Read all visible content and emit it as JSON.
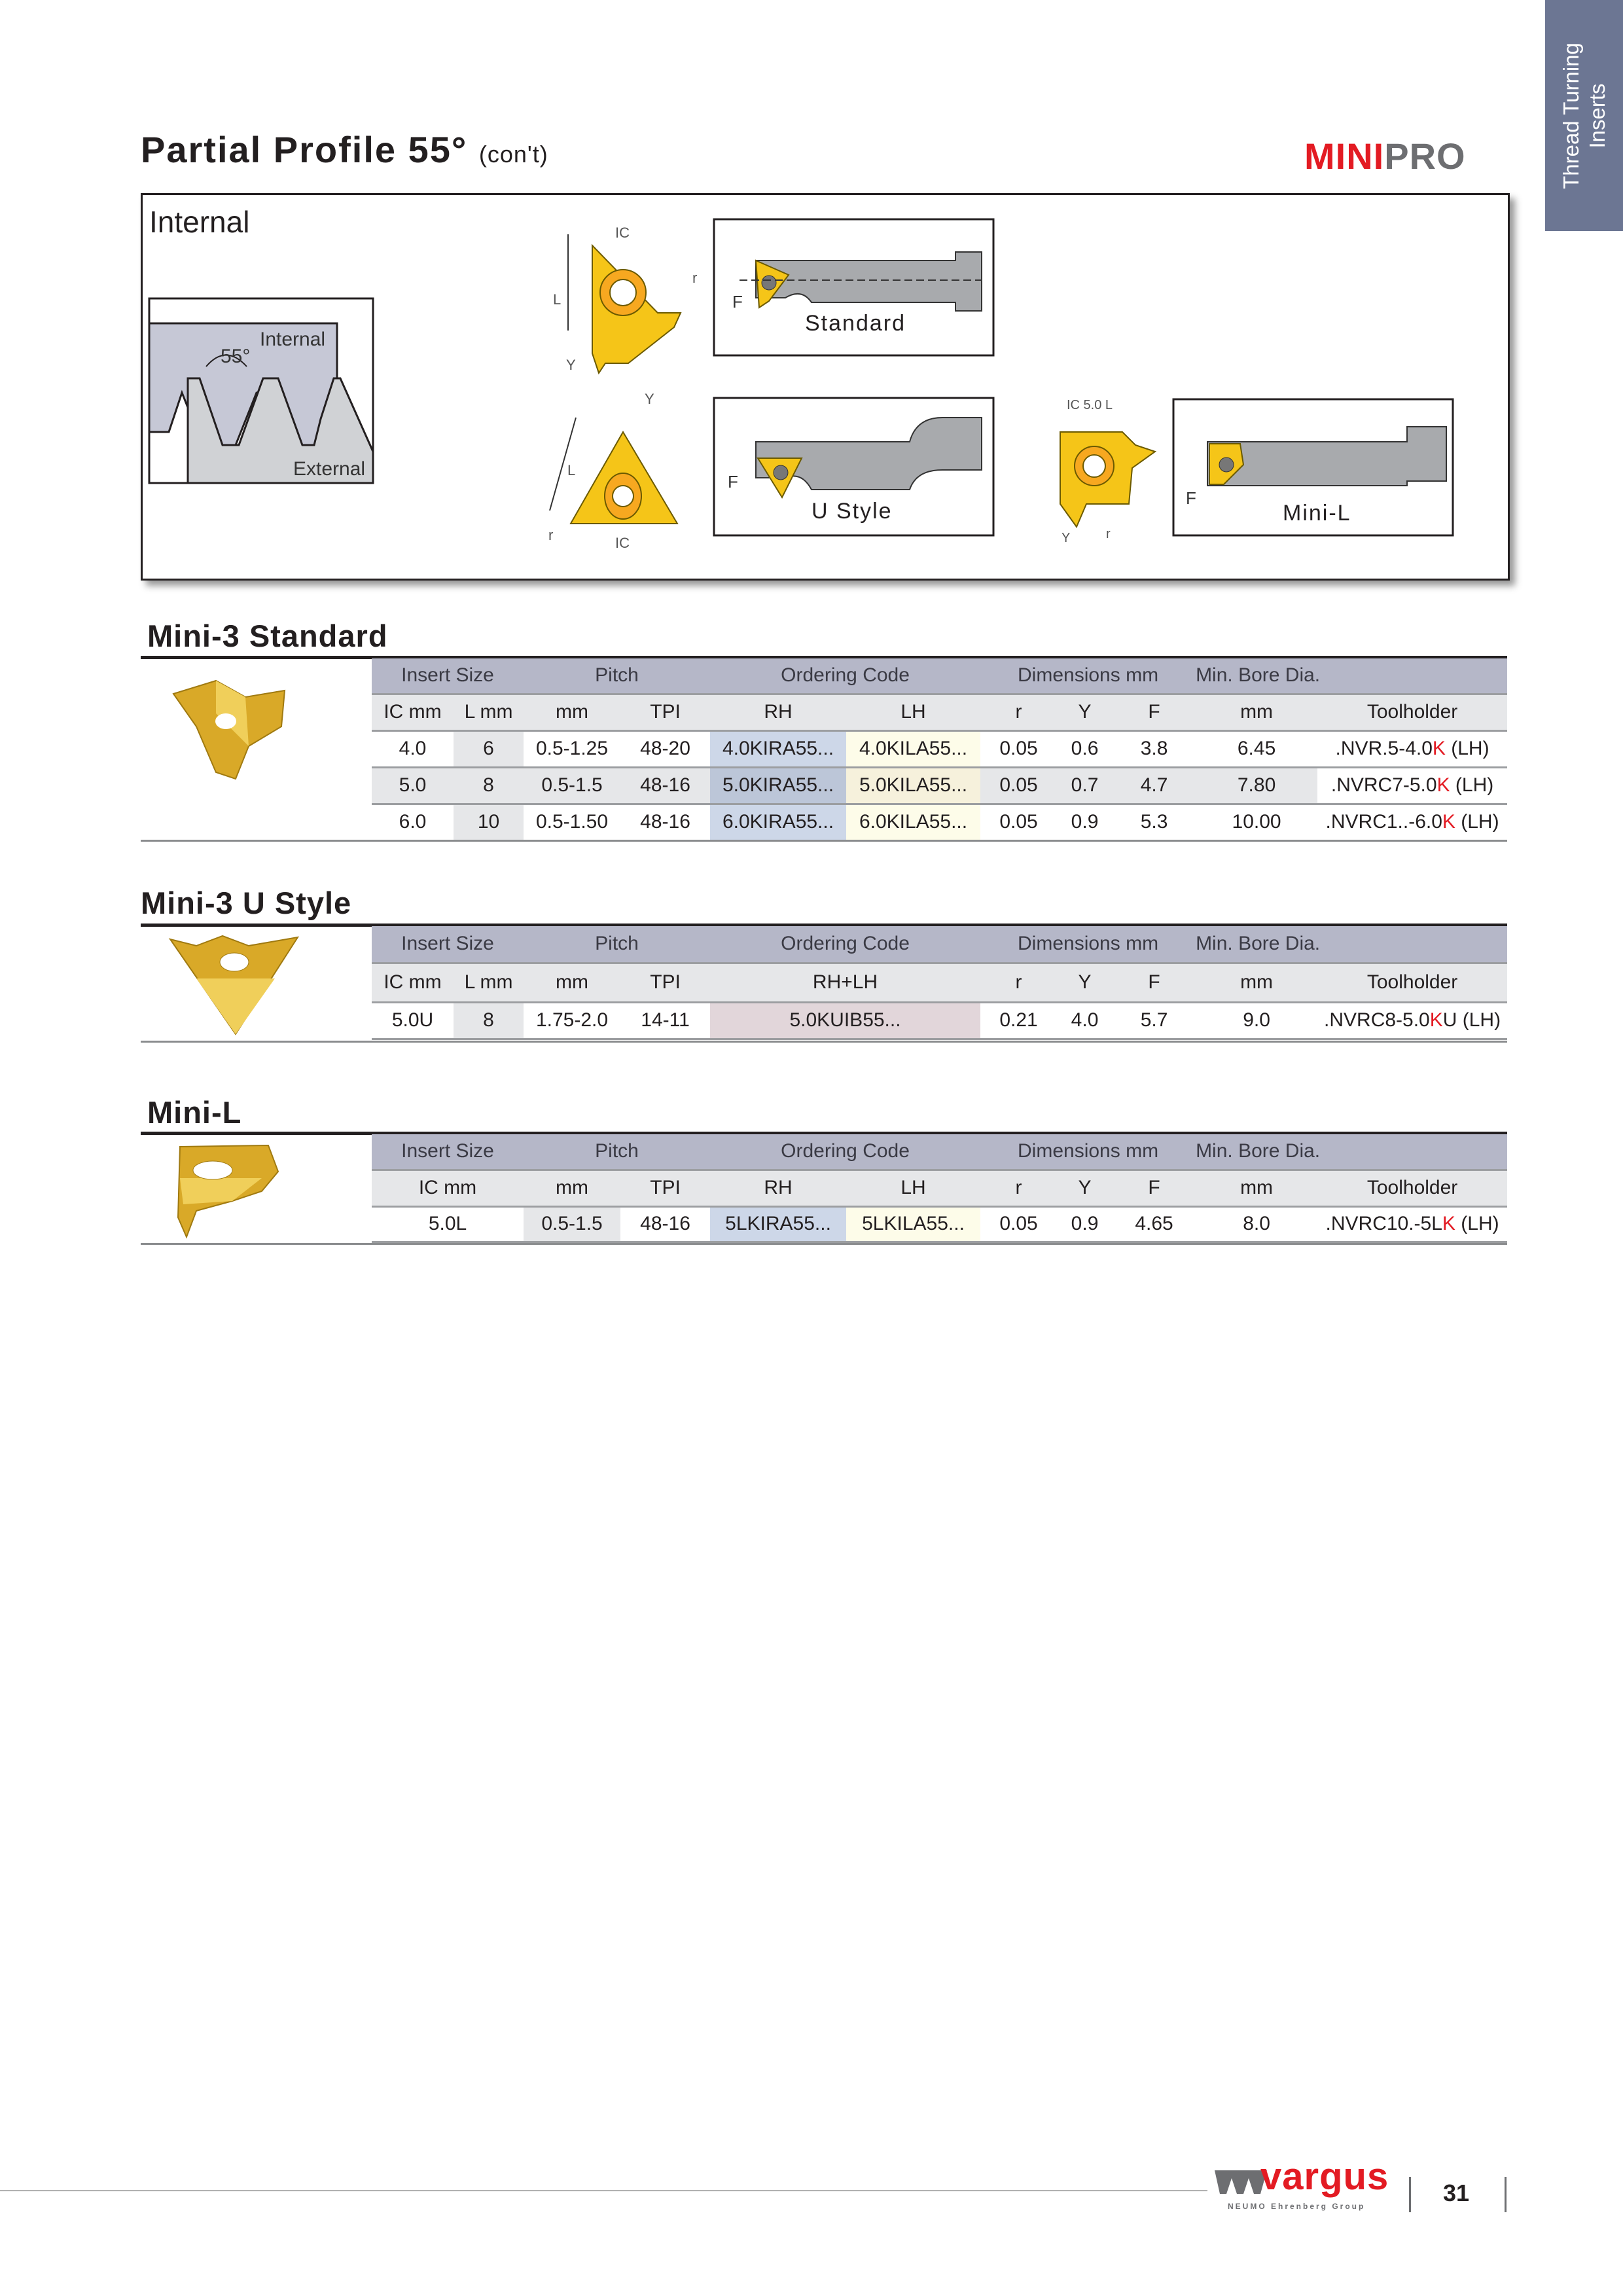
{
  "side_tab": {
    "line1": "Thread Turning",
    "line2": "Inserts"
  },
  "header": {
    "title": "Partial Profile 55°",
    "subtitle": "(con't)",
    "logo_mini": "MINI",
    "logo_pro": "PRO"
  },
  "diagram": {
    "title": "Internal",
    "thread": {
      "internal": "Internal",
      "external": "External",
      "angle": "55°"
    },
    "labels": {
      "ic": "IC",
      "l": "L",
      "y": "Y",
      "r": "r",
      "f": "F",
      "ic_minil": "IC 5.0 L"
    },
    "holders": {
      "standard": "Standard",
      "ustyle": "U Style",
      "minil": "Mini-L"
    }
  },
  "colors": {
    "accent_red": "#e31b23",
    "tab_blue": "#6c7693",
    "insert_gold": "#f5c518",
    "header_row": "#b5b7c8"
  },
  "sections": [
    {
      "title": "Mini-3 Standard",
      "header1": [
        "Insert Size",
        "Pitch",
        "Ordering Code",
        "Dimensions mm",
        "Min. Bore Dia.",
        ""
      ],
      "header2": [
        "IC mm",
        "L mm",
        "mm",
        "TPI",
        "RH",
        "LH",
        "r",
        "Y",
        "F",
        "mm",
        "Toolholder"
      ],
      "rows": [
        [
          "4.0",
          "6",
          "0.5-1.25",
          "48-20",
          "4.0KIRA55...",
          "4.0KILA55...",
          "0.05",
          "0.6",
          "3.8",
          "6.45",
          ".NVR.5-4.0K (LH)"
        ],
        [
          "5.0",
          "8",
          "0.5-1.5",
          "48-16",
          "5.0KIRA55...",
          "5.0KILA55...",
          "0.05",
          "0.7",
          "4.7",
          "7.80",
          ".NVRC7-5.0K (LH)"
        ],
        [
          "6.0",
          "10",
          "0.5-1.50",
          "48-16",
          "6.0KIRA55...",
          "6.0KILA55...",
          "0.05",
          "0.9",
          "5.3",
          "10.00",
          ".NVRC1..-6.0K (LH)"
        ]
      ]
    },
    {
      "title": "Mini-3 U Style",
      "header1": [
        "Insert Size",
        "Pitch",
        "Ordering Code",
        "Dimensions mm",
        "Min. Bore Dia.",
        ""
      ],
      "header2": [
        "IC mm",
        "L mm",
        "mm",
        "TPI",
        "RH+LH",
        "r",
        "Y",
        "F",
        "mm",
        "Toolholder"
      ],
      "rows": [
        [
          "5.0U",
          "8",
          "1.75-2.0",
          "14-11",
          "5.0KUIB55...",
          "0.21",
          "4.0",
          "5.7",
          "9.0",
          ".NVRC8-5.0KU (LH)"
        ]
      ]
    },
    {
      "title": "Mini-L",
      "header1": [
        "Insert Size",
        "Pitch",
        "Ordering Code",
        "Dimensions mm",
        "Min. Bore Dia.",
        ""
      ],
      "header2": [
        "IC mm",
        "mm",
        "TPI",
        "RH",
        "LH",
        "r",
        "Y",
        "F",
        "mm",
        "Toolholder"
      ],
      "rows": [
        [
          "5.0L",
          "0.5-1.5",
          "48-16",
          "5LKIRA55...",
          "5LKILA55...",
          "0.05",
          "0.9",
          "4.65",
          "8.0",
          ".NVRC10.-5LK (LH)"
        ]
      ]
    }
  ],
  "footer": {
    "brand": "vargus",
    "group": "NEUMO Ehrenberg Group",
    "page": "31"
  }
}
